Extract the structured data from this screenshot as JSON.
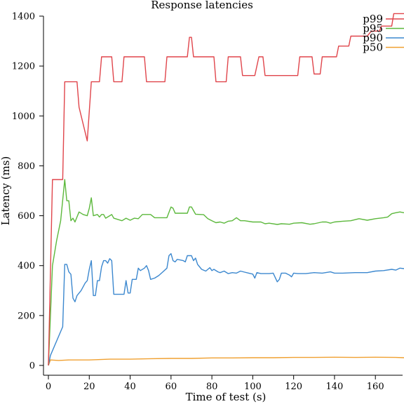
{
  "chart_data": {
    "type": "line",
    "title": "Response latencies",
    "xlabel": "Time of test (s)",
    "ylabel": "Latency (ms)",
    "xlim": [
      0,
      174
    ],
    "ylim": [
      0,
      1400
    ],
    "xticks": [
      0,
      20,
      40,
      60,
      80,
      100,
      120,
      140,
      160
    ],
    "yticks": [
      0,
      200,
      400,
      600,
      800,
      1000,
      1200,
      1400
    ],
    "grid": false,
    "legend_position": "top-right",
    "series": [
      {
        "name": "p99",
        "color": "#e0454b",
        "points": [
          [
            0,
            0
          ],
          [
            2,
            745
          ],
          [
            7,
            745
          ],
          [
            8,
            1137
          ],
          [
            14,
            1137
          ],
          [
            15,
            1035
          ],
          [
            19,
            900
          ],
          [
            21,
            1137
          ],
          [
            25,
            1137
          ],
          [
            26,
            1237
          ],
          [
            31,
            1237
          ],
          [
            32,
            1137
          ],
          [
            36,
            1137
          ],
          [
            37,
            1237
          ],
          [
            47,
            1237
          ],
          [
            48,
            1137
          ],
          [
            57,
            1137
          ],
          [
            58,
            1237
          ],
          [
            68,
            1237
          ],
          [
            69,
            1315
          ],
          [
            70,
            1315
          ],
          [
            71,
            1237
          ],
          [
            81,
            1237
          ],
          [
            82,
            1137
          ],
          [
            87,
            1137
          ],
          [
            88,
            1237
          ],
          [
            94,
            1237
          ],
          [
            95,
            1162
          ],
          [
            101,
            1162
          ],
          [
            103,
            1237
          ],
          [
            105,
            1237
          ],
          [
            106,
            1162
          ],
          [
            122,
            1162
          ],
          [
            123,
            1237
          ],
          [
            129,
            1237
          ],
          [
            130,
            1168
          ],
          [
            133,
            1168
          ],
          [
            134,
            1237
          ],
          [
            141,
            1237
          ],
          [
            142,
            1280
          ],
          [
            147,
            1280
          ],
          [
            148,
            1320
          ],
          [
            156,
            1320
          ],
          [
            158,
            1340
          ],
          [
            162,
            1340
          ],
          [
            163,
            1360
          ],
          [
            168,
            1360
          ],
          [
            169,
            1410
          ],
          [
            174,
            1410
          ]
        ]
      },
      {
        "name": "p95",
        "color": "#5cb83c",
        "points": [
          [
            0,
            0
          ],
          [
            2,
            400
          ],
          [
            4,
            500
          ],
          [
            6,
            580
          ],
          [
            8,
            745
          ],
          [
            9,
            660
          ],
          [
            10,
            660
          ],
          [
            11,
            580
          ],
          [
            12,
            590
          ],
          [
            13,
            575
          ],
          [
            15,
            615
          ],
          [
            17,
            605
          ],
          [
            19,
            600
          ],
          [
            20,
            630
          ],
          [
            21,
            672
          ],
          [
            22,
            600
          ],
          [
            24,
            605
          ],
          [
            25,
            595
          ],
          [
            26,
            605
          ],
          [
            27,
            605
          ],
          [
            28,
            590
          ],
          [
            30,
            600
          ],
          [
            31,
            605
          ],
          [
            32,
            590
          ],
          [
            36,
            580
          ],
          [
            38,
            590
          ],
          [
            40,
            582
          ],
          [
            42,
            590
          ],
          [
            44,
            588
          ],
          [
            46,
            605
          ],
          [
            50,
            605
          ],
          [
            52,
            592
          ],
          [
            58,
            592
          ],
          [
            60,
            635
          ],
          [
            61,
            630
          ],
          [
            62,
            610
          ],
          [
            68,
            610
          ],
          [
            69,
            635
          ],
          [
            70,
            635
          ],
          [
            72,
            606
          ],
          [
            76,
            604
          ],
          [
            78,
            588
          ],
          [
            80,
            580
          ],
          [
            82,
            572
          ],
          [
            84,
            575
          ],
          [
            86,
            570
          ],
          [
            88,
            578
          ],
          [
            90,
            580
          ],
          [
            92,
            592
          ],
          [
            94,
            580
          ],
          [
            96,
            580
          ],
          [
            100,
            575
          ],
          [
            104,
            575
          ],
          [
            106,
            568
          ],
          [
            108,
            570
          ],
          [
            112,
            565
          ],
          [
            114,
            568
          ],
          [
            118,
            566
          ],
          [
            120,
            570
          ],
          [
            124,
            572
          ],
          [
            128,
            566
          ],
          [
            130,
            568
          ],
          [
            134,
            575
          ],
          [
            136,
            575
          ],
          [
            138,
            570
          ],
          [
            140,
            575
          ],
          [
            144,
            578
          ],
          [
            148,
            580
          ],
          [
            152,
            588
          ],
          [
            156,
            582
          ],
          [
            160,
            588
          ],
          [
            164,
            592
          ],
          [
            166,
            595
          ],
          [
            168,
            608
          ],
          [
            170,
            612
          ],
          [
            172,
            615
          ],
          [
            174,
            612
          ]
        ]
      },
      {
        "name": "p90",
        "color": "#3c88cf",
        "points": [
          [
            0,
            0
          ],
          [
            1,
            40
          ],
          [
            7,
            155
          ],
          [
            8,
            405
          ],
          [
            9,
            405
          ],
          [
            10,
            375
          ],
          [
            11,
            365
          ],
          [
            12,
            270
          ],
          [
            13,
            255
          ],
          [
            14,
            280
          ],
          [
            16,
            300
          ],
          [
            18,
            330
          ],
          [
            19,
            340
          ],
          [
            20,
            385
          ],
          [
            21,
            420
          ],
          [
            22,
            280
          ],
          [
            23,
            280
          ],
          [
            24,
            340
          ],
          [
            25,
            340
          ],
          [
            26,
            395
          ],
          [
            27,
            420
          ],
          [
            28,
            420
          ],
          [
            29,
            410
          ],
          [
            30,
            428
          ],
          [
            31,
            420
          ],
          [
            32,
            285
          ],
          [
            37,
            285
          ],
          [
            38,
            340
          ],
          [
            39,
            290
          ],
          [
            40,
            290
          ],
          [
            41,
            345
          ],
          [
            43,
            345
          ],
          [
            44,
            390
          ],
          [
            45,
            380
          ],
          [
            47,
            390
          ],
          [
            48,
            400
          ],
          [
            49,
            380
          ],
          [
            50,
            345
          ],
          [
            52,
            350
          ],
          [
            54,
            360
          ],
          [
            56,
            375
          ],
          [
            58,
            390
          ],
          [
            59,
            440
          ],
          [
            60,
            448
          ],
          [
            61,
            420
          ],
          [
            62,
            415
          ],
          [
            63,
            425
          ],
          [
            66,
            420
          ],
          [
            67,
            415
          ],
          [
            68,
            440
          ],
          [
            70,
            440
          ],
          [
            71,
            420
          ],
          [
            72,
            430
          ],
          [
            73,
            405
          ],
          [
            74,
            395
          ],
          [
            75,
            385
          ],
          [
            77,
            378
          ],
          [
            79,
            392
          ],
          [
            80,
            380
          ],
          [
            81,
            385
          ],
          [
            83,
            375
          ],
          [
            84,
            372
          ],
          [
            86,
            378
          ],
          [
            88,
            368
          ],
          [
            90,
            372
          ],
          [
            92,
            370
          ],
          [
            94,
            378
          ],
          [
            96,
            374
          ],
          [
            98,
            370
          ],
          [
            100,
            366
          ],
          [
            101,
            350
          ],
          [
            102,
            372
          ],
          [
            104,
            368
          ],
          [
            108,
            368
          ],
          [
            110,
            370
          ],
          [
            112,
            335
          ],
          [
            113,
            345
          ],
          [
            114,
            370
          ],
          [
            116,
            370
          ],
          [
            118,
            362
          ],
          [
            119,
            355
          ],
          [
            120,
            370
          ],
          [
            122,
            368
          ],
          [
            126,
            368
          ],
          [
            130,
            372
          ],
          [
            134,
            370
          ],
          [
            138,
            375
          ],
          [
            140,
            370
          ],
          [
            144,
            370
          ],
          [
            150,
            372
          ],
          [
            156,
            372
          ],
          [
            160,
            378
          ],
          [
            164,
            380
          ],
          [
            168,
            385
          ],
          [
            170,
            382
          ],
          [
            172,
            390
          ],
          [
            174,
            388
          ]
        ]
      },
      {
        "name": "p50",
        "color": "#f0a030",
        "points": [
          [
            0,
            0
          ],
          [
            1,
            22
          ],
          [
            5,
            20
          ],
          [
            10,
            22
          ],
          [
            20,
            22
          ],
          [
            30,
            25
          ],
          [
            40,
            25
          ],
          [
            50,
            27
          ],
          [
            60,
            28
          ],
          [
            70,
            28
          ],
          [
            80,
            30
          ],
          [
            90,
            30
          ],
          [
            100,
            31
          ],
          [
            110,
            31
          ],
          [
            120,
            32
          ],
          [
            130,
            32
          ],
          [
            140,
            33
          ],
          [
            150,
            32
          ],
          [
            160,
            33
          ],
          [
            170,
            32
          ],
          [
            174,
            31
          ]
        ]
      }
    ]
  }
}
